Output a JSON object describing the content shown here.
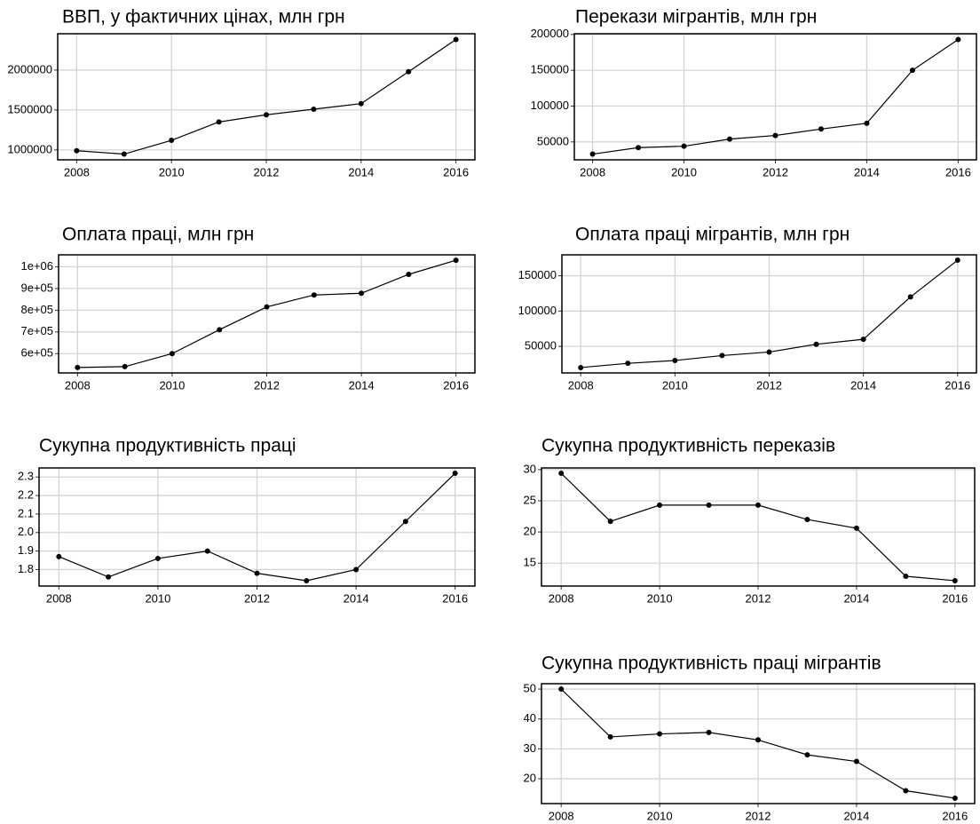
{
  "chart_data": [
    {
      "type": "line",
      "title": "ВВП, у фактичних цінах, млн грн",
      "x": [
        2008,
        2009,
        2010,
        2011,
        2012,
        2013,
        2014,
        2015,
        2016
      ],
      "values": [
        990000,
        948000,
        1120000,
        1350000,
        1440000,
        1510000,
        1580000,
        1980000,
        2383000
      ],
      "color": "#000000",
      "xlim": [
        2007.6,
        2016.4
      ],
      "xticks": [
        2008,
        2010,
        2012,
        2014,
        2016
      ],
      "ylim": [
        876000,
        2455000
      ],
      "yticks": [
        1000000,
        1500000,
        2000000
      ],
      "grid": true
    },
    {
      "type": "line",
      "title": "Перекази мігрантів, млн грн",
      "x": [
        2008,
        2009,
        2010,
        2011,
        2012,
        2013,
        2014,
        2015,
        2016
      ],
      "values": [
        33000,
        42000,
        44000,
        54000,
        59000,
        68000,
        76000,
        150000,
        193000
      ],
      "color": "#000000",
      "xlim": [
        2007.6,
        2016.4
      ],
      "xticks": [
        2008,
        2010,
        2012,
        2014,
        2016
      ],
      "ylim": [
        25000,
        201000
      ],
      "yticks": [
        50000,
        100000,
        150000,
        200000
      ],
      "grid": true
    },
    {
      "type": "line",
      "title": "Оплата праці, млн грн",
      "x": [
        2008,
        2009,
        2010,
        2011,
        2012,
        2013,
        2014,
        2015,
        2016
      ],
      "values": [
        536000,
        540000,
        600000,
        710000,
        815000,
        870000,
        878000,
        965000,
        1030000
      ],
      "color": "#000000",
      "xlim": [
        2007.6,
        2016.4
      ],
      "xticks": [
        2008,
        2010,
        2012,
        2014,
        2016
      ],
      "ylim": [
        511000,
        1055000
      ],
      "yticks": [
        {
          "value": 600000,
          "label": "6e+05"
        },
        {
          "value": 700000,
          "label": "7e+05"
        },
        {
          "value": 800000,
          "label": "8e+05"
        },
        {
          "value": 900000,
          "label": "9e+05"
        },
        {
          "value": 1000000,
          "label": "1e+06"
        }
      ],
      "grid": true
    },
    {
      "type": "line",
      "title": "Оплата праці мігрантів, млн грн",
      "x": [
        2008,
        2009,
        2010,
        2011,
        2012,
        2013,
        2014,
        2015,
        2016
      ],
      "values": [
        20000,
        26000,
        30000,
        37000,
        42000,
        53000,
        60000,
        120000,
        172000
      ],
      "color": "#000000",
      "xlim": [
        2007.6,
        2016.4
      ],
      "xticks": [
        2008,
        2010,
        2012,
        2014,
        2016
      ],
      "ylim": [
        12400,
        179600
      ],
      "yticks": [
        50000,
        100000,
        150000
      ],
      "grid": true
    },
    {
      "type": "line",
      "title": "Сукупна продуктивність праці",
      "x": [
        2008,
        2009,
        2010,
        2011,
        2012,
        2013,
        2014,
        2015,
        2016
      ],
      "values": [
        1.87,
        1.76,
        1.86,
        1.9,
        1.78,
        1.74,
        1.8,
        2.06,
        2.32
      ],
      "color": "#000000",
      "xlim": [
        2007.6,
        2016.4
      ],
      "xticks": [
        2008,
        2010,
        2012,
        2014,
        2016
      ],
      "ylim": [
        1.711,
        2.349
      ],
      "yticks": [
        1.8,
        1.9,
        {
          "value": 2,
          "label": "2.0"
        },
        2.1,
        2.2,
        2.3
      ],
      "grid": true
    },
    {
      "type": "line",
      "title": "Сукупна продуктивність переказів",
      "x": [
        2008,
        2009,
        2010,
        2011,
        2012,
        2013,
        2014,
        2015,
        2016
      ],
      "values": [
        29.4,
        21.7,
        24.3,
        24.3,
        24.3,
        22.0,
        20.6,
        12.9,
        12.2
      ],
      "color": "#000000",
      "xlim": [
        2007.6,
        2016.4
      ],
      "xticks": [
        2008,
        2010,
        2012,
        2014,
        2016
      ],
      "ylim": [
        11.34,
        30.26
      ],
      "yticks": [
        15,
        20,
        25,
        30
      ],
      "grid": true
    },
    {
      "type": "line",
      "title": "Сукупна продуктивність праці мігрантів",
      "x": [
        2008,
        2009,
        2010,
        2011,
        2012,
        2013,
        2014,
        2015,
        2016
      ],
      "values": [
        50,
        34,
        35,
        35.5,
        33,
        28,
        25.8,
        16,
        13.5
      ],
      "color": "#000000",
      "xlim": [
        2007.6,
        2016.4
      ],
      "xticks": [
        2008,
        2010,
        2012,
        2014,
        2016
      ],
      "ylim": [
        11.7,
        51.8
      ],
      "yticks": [
        20,
        30,
        40,
        50
      ],
      "grid": true
    }
  ]
}
